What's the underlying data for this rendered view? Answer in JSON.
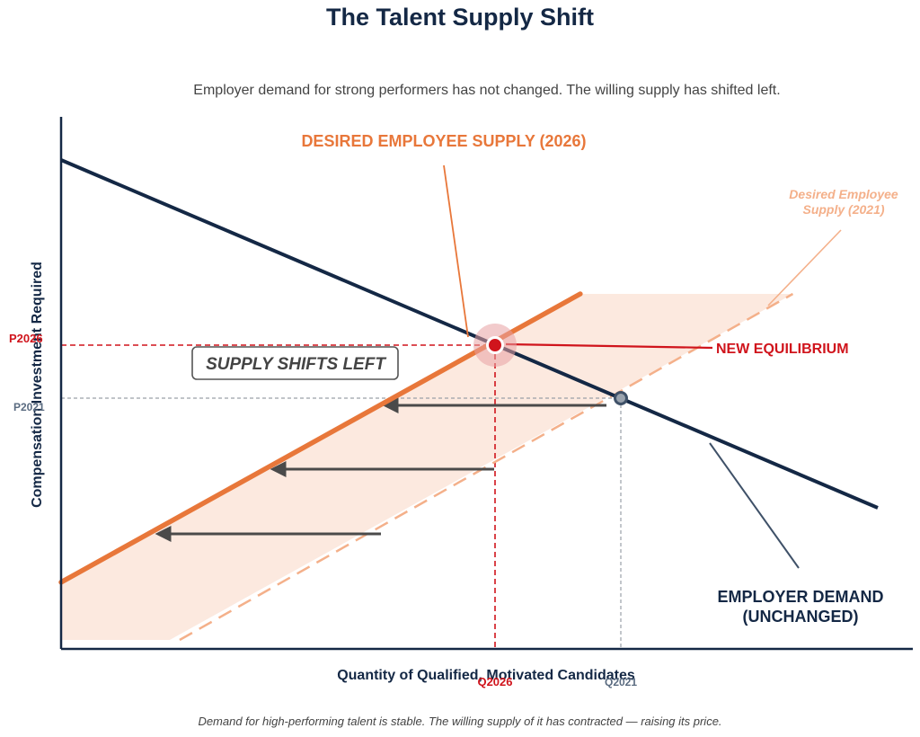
{
  "header": {
    "title": "The Talent Supply Shift",
    "subtitle": "Employer demand for strong performers has not changed. The willing supply has shifted left."
  },
  "footer": {
    "note": "Demand for high-performing talent is stable. The willing supply of it has contracted — raising its price."
  },
  "chart_data": {
    "type": "line",
    "xlabel": "Quantity of Qualified, Motivated Candidates",
    "ylabel": "Compensation Investment Required",
    "xlim": [
      0,
      100
    ],
    "ylim": [
      0,
      100
    ],
    "series": [
      {
        "name": "EMPLOYER DEMAND (UNCHANGED)",
        "color": "#142845",
        "style": "solid",
        "x": [
          0,
          100
        ],
        "y": [
          92,
          27
        ]
      },
      {
        "name": "DESIRED EMPLOYEE SUPPLY (2026)",
        "color": "#E8773A",
        "style": "solid",
        "x": [
          0,
          63.5
        ],
        "y": [
          11,
          66
        ]
      },
      {
        "name": "Desired Employee Supply (2021)",
        "color": "#F4B08A",
        "style": "dashed",
        "x": [
          14.5,
          89.5
        ],
        "y": [
          0,
          66
        ]
      }
    ],
    "equilibria": [
      {
        "label": "NEW EQUILIBRIUM",
        "x": 52.5,
        "y": 57.5,
        "x_tick": "Q2026",
        "y_tick": "P2026",
        "color": "#D0141C"
      },
      {
        "label": "",
        "x": 67.5,
        "y": 47.5,
        "x_tick": "Q2021",
        "y_tick": "P2021",
        "color": "#5A6B80"
      }
    ],
    "shift_arrows": [
      {
        "from_x": 66.5,
        "to_x": 39.5,
        "y": 46
      },
      {
        "from_x": 52.5,
        "to_x": 26,
        "y": 34
      },
      {
        "from_x": 38.5,
        "to_x": 12.5,
        "y": 22
      }
    ],
    "annotations": {
      "shift_box": "SUPPLY SHIFTS LEFT",
      "new_equilibrium": "NEW EQUILIBRIUM",
      "demand_label_line1": "EMPLOYER DEMAND",
      "demand_label_line2": "(UNCHANGED)",
      "supply2026_label": "DESIRED EMPLOYEE SUPPLY (2026)",
      "supply2021_label_line1": "Desired Employee",
      "supply2021_label_line2": "Supply (2021)"
    },
    "ticks": {
      "p2026": "P2026",
      "p2021": "P2021",
      "q2026": "Q2026",
      "q2021": "Q2021"
    },
    "grid": false,
    "legend": "none"
  }
}
